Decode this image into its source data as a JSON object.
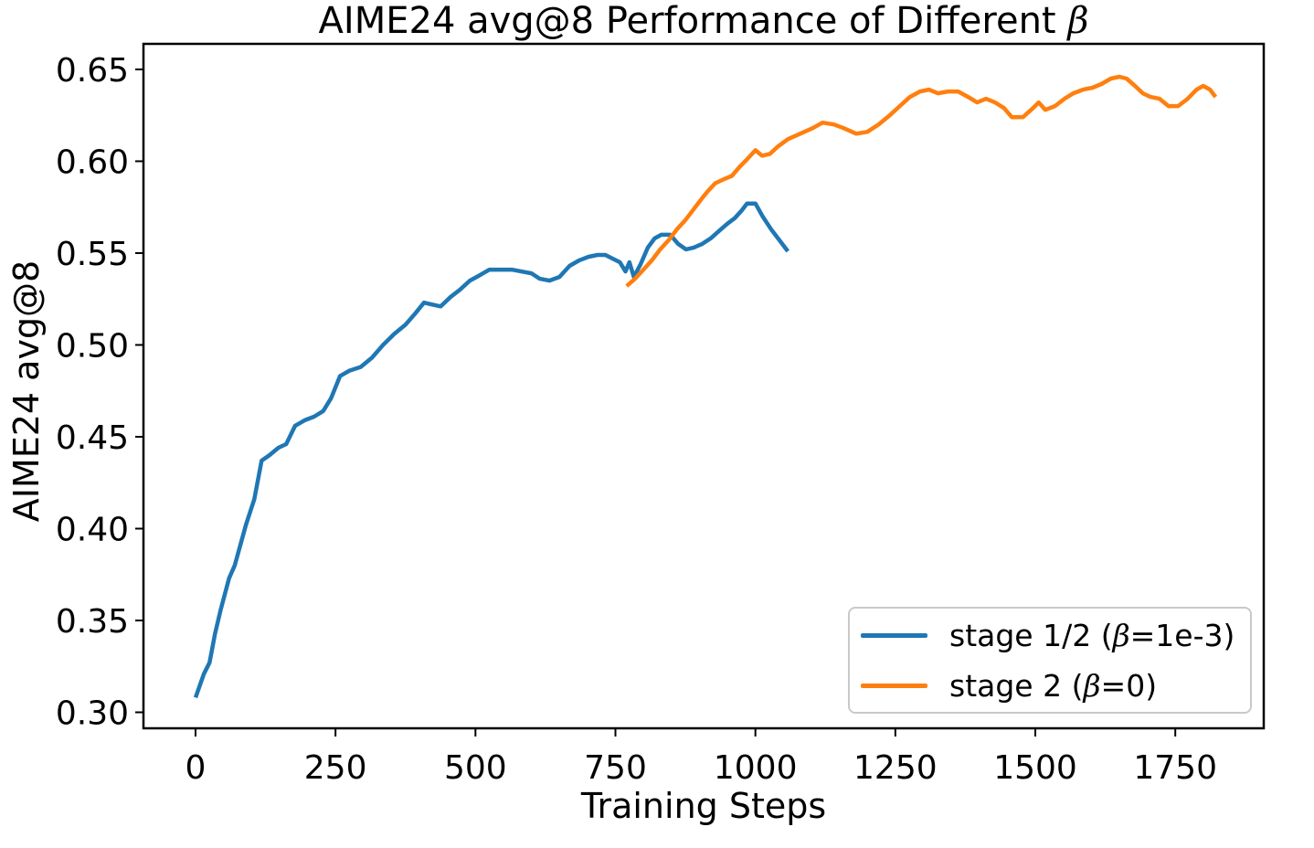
{
  "figure": {
    "title": {
      "prefix": "AIME24 avg@8 Performance of Different ",
      "beta": "β"
    },
    "x_axis": {
      "label": "Training Steps",
      "ticks": [
        "0",
        "250",
        "500",
        "750",
        "1000",
        "1250",
        "1500",
        "1750"
      ]
    },
    "y_axis": {
      "label": "AIME24 avg@8",
      "ticks": [
        "0.30",
        "0.35",
        "0.40",
        "0.45",
        "0.50",
        "0.55",
        "0.60",
        "0.65"
      ]
    },
    "legend": {
      "entries": [
        {
          "label": "stage 1/2 (β=1e-3)",
          "label_prefix": "stage 1/2 (",
          "beta": "β",
          "label_suffix": "=1e-3)",
          "color": "#1f77b4"
        },
        {
          "label": "stage 2 (β=0)",
          "label_prefix": "stage 2 (",
          "beta": "β",
          "label_suffix": "=0)",
          "color": "#ff7f0e"
        }
      ]
    }
  },
  "chart_data": {
    "type": "line",
    "title": "AIME24 avg@8 Performance of Different β",
    "xlabel": "Training Steps",
    "ylabel": "AIME24 avg@8",
    "xlim": [
      -93,
      1908
    ],
    "ylim": [
      0.2913,
      0.6639
    ],
    "x_ticks": [
      0,
      250,
      500,
      750,
      1000,
      1250,
      1500,
      1750
    ],
    "y_ticks": [
      0.3,
      0.35,
      0.4,
      0.45,
      0.5,
      0.55,
      0.6,
      0.65
    ],
    "grid": false,
    "legend_position": "lower right",
    "series": [
      {
        "name": "stage 1/2 (β=1e-3)",
        "color": "#1f77b4",
        "points": [
          [
            0,
            0.308
          ],
          [
            15,
            0.321
          ],
          [
            25,
            0.327
          ],
          [
            35,
            0.343
          ],
          [
            45,
            0.356
          ],
          [
            60,
            0.373
          ],
          [
            70,
            0.38
          ],
          [
            80,
            0.391
          ],
          [
            90,
            0.402
          ],
          [
            105,
            0.416
          ],
          [
            118,
            0.437
          ],
          [
            132,
            0.44
          ],
          [
            148,
            0.444
          ],
          [
            162,
            0.446
          ],
          [
            178,
            0.456
          ],
          [
            195,
            0.459
          ],
          [
            212,
            0.461
          ],
          [
            228,
            0.464
          ],
          [
            242,
            0.471
          ],
          [
            258,
            0.483
          ],
          [
            275,
            0.486
          ],
          [
            295,
            0.488
          ],
          [
            315,
            0.493
          ],
          [
            335,
            0.5
          ],
          [
            355,
            0.506
          ],
          [
            375,
            0.511
          ],
          [
            392,
            0.517
          ],
          [
            408,
            0.523
          ],
          [
            422,
            0.522
          ],
          [
            438,
            0.521
          ],
          [
            455,
            0.526
          ],
          [
            472,
            0.53
          ],
          [
            490,
            0.535
          ],
          [
            508,
            0.538
          ],
          [
            525,
            0.541
          ],
          [
            545,
            0.541
          ],
          [
            565,
            0.541
          ],
          [
            582,
            0.54
          ],
          [
            600,
            0.539
          ],
          [
            615,
            0.536
          ],
          [
            632,
            0.535
          ],
          [
            650,
            0.537
          ],
          [
            668,
            0.543
          ],
          [
            685,
            0.546
          ],
          [
            702,
            0.548
          ],
          [
            718,
            0.549
          ],
          [
            732,
            0.549
          ],
          [
            745,
            0.547
          ],
          [
            758,
            0.545
          ],
          [
            768,
            0.54
          ],
          [
            775,
            0.545
          ],
          [
            783,
            0.537
          ],
          [
            795,
            0.544
          ],
          [
            808,
            0.553
          ],
          [
            820,
            0.558
          ],
          [
            832,
            0.56
          ],
          [
            848,
            0.56
          ],
          [
            862,
            0.555
          ],
          [
            876,
            0.552
          ],
          [
            890,
            0.553
          ],
          [
            905,
            0.555
          ],
          [
            920,
            0.558
          ],
          [
            935,
            0.562
          ],
          [
            950,
            0.566
          ],
          [
            963,
            0.569
          ],
          [
            975,
            0.573
          ],
          [
            985,
            0.577
          ],
          [
            1000,
            0.577
          ],
          [
            1013,
            0.57
          ],
          [
            1028,
            0.563
          ],
          [
            1043,
            0.557
          ],
          [
            1058,
            0.551
          ]
        ]
      },
      {
        "name": "stage 2 (β=0)",
        "color": "#ff7f0e",
        "points": [
          [
            770,
            0.532
          ],
          [
            785,
            0.536
          ],
          [
            800,
            0.541
          ],
          [
            815,
            0.546
          ],
          [
            830,
            0.552
          ],
          [
            845,
            0.557
          ],
          [
            860,
            0.563
          ],
          [
            875,
            0.568
          ],
          [
            890,
            0.574
          ],
          [
            905,
            0.58
          ],
          [
            916,
            0.584
          ],
          [
            928,
            0.588
          ],
          [
            942,
            0.59
          ],
          [
            958,
            0.592
          ],
          [
            972,
            0.597
          ],
          [
            985,
            0.601
          ],
          [
            1000,
            0.606
          ],
          [
            1012,
            0.603
          ],
          [
            1026,
            0.604
          ],
          [
            1040,
            0.608
          ],
          [
            1058,
            0.612
          ],
          [
            1080,
            0.615
          ],
          [
            1102,
            0.618
          ],
          [
            1120,
            0.621
          ],
          [
            1140,
            0.62
          ],
          [
            1158,
            0.618
          ],
          [
            1180,
            0.615
          ],
          [
            1200,
            0.616
          ],
          [
            1220,
            0.62
          ],
          [
            1240,
            0.625
          ],
          [
            1258,
            0.63
          ],
          [
            1276,
            0.635
          ],
          [
            1294,
            0.638
          ],
          [
            1310,
            0.639
          ],
          [
            1326,
            0.637
          ],
          [
            1344,
            0.638
          ],
          [
            1362,
            0.638
          ],
          [
            1380,
            0.635
          ],
          [
            1396,
            0.632
          ],
          [
            1412,
            0.634
          ],
          [
            1428,
            0.632
          ],
          [
            1444,
            0.629
          ],
          [
            1458,
            0.624
          ],
          [
            1478,
            0.624
          ],
          [
            1496,
            0.629
          ],
          [
            1506,
            0.632
          ],
          [
            1518,
            0.628
          ],
          [
            1535,
            0.63
          ],
          [
            1552,
            0.634
          ],
          [
            1568,
            0.637
          ],
          [
            1585,
            0.639
          ],
          [
            1602,
            0.64
          ],
          [
            1618,
            0.642
          ],
          [
            1635,
            0.645
          ],
          [
            1650,
            0.646
          ],
          [
            1663,
            0.645
          ],
          [
            1678,
            0.641
          ],
          [
            1692,
            0.637
          ],
          [
            1706,
            0.635
          ],
          [
            1722,
            0.634
          ],
          [
            1738,
            0.63
          ],
          [
            1755,
            0.63
          ],
          [
            1772,
            0.634
          ],
          [
            1788,
            0.639
          ],
          [
            1800,
            0.641
          ],
          [
            1812,
            0.639
          ],
          [
            1822,
            0.635
          ]
        ]
      }
    ]
  }
}
